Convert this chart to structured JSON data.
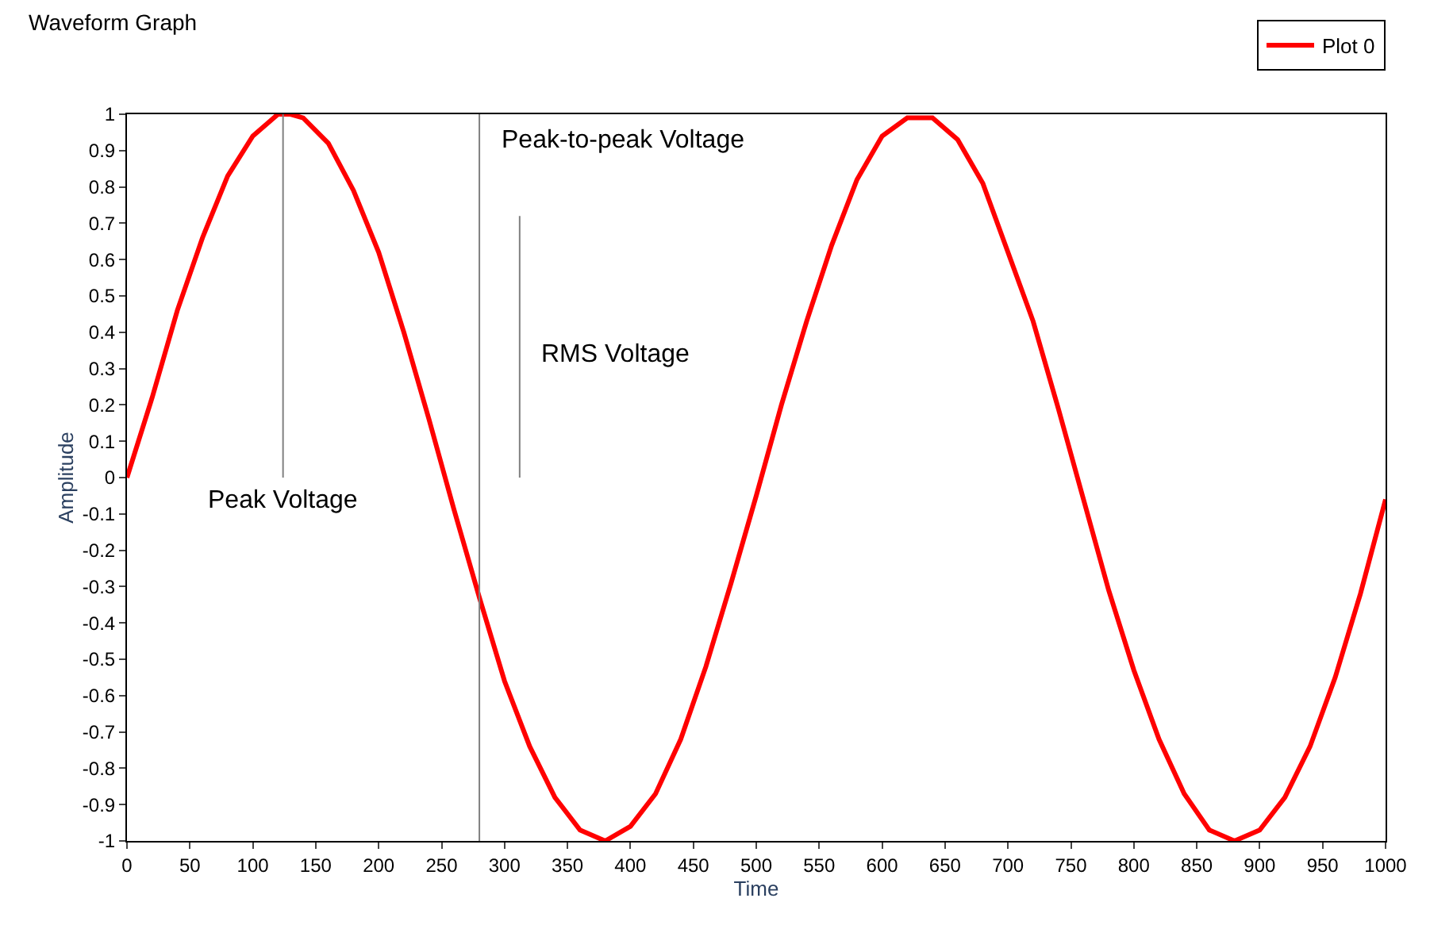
{
  "chart_data": {
    "type": "line",
    "title": "Waveform Graph",
    "xlabel": "Time",
    "ylabel": "Amplitude",
    "x": [
      0,
      20,
      40,
      60,
      80,
      100,
      120,
      130,
      140,
      160,
      180,
      200,
      220,
      240,
      260,
      280,
      300,
      320,
      340,
      360,
      380,
      400,
      420,
      440,
      460,
      480,
      500,
      520,
      540,
      560,
      580,
      600,
      620,
      640,
      660,
      680,
      700,
      720,
      740,
      760,
      780,
      800,
      820,
      840,
      860,
      880,
      900,
      920,
      940,
      960,
      980,
      1000
    ],
    "series": [
      {
        "name": "Plot 0",
        "color": "#ff0000",
        "values": [
          0,
          0.22,
          0.46,
          0.66,
          0.83,
          0.94,
          1.0,
          1.0,
          0.99,
          0.92,
          0.79,
          0.62,
          0.4,
          0.16,
          -0.09,
          -0.33,
          -0.56,
          -0.74,
          -0.88,
          -0.97,
          -1.0,
          -0.96,
          -0.87,
          -0.72,
          -0.52,
          -0.29,
          -0.05,
          0.2,
          0.43,
          0.64,
          0.82,
          0.94,
          0.99,
          0.99,
          0.93,
          0.81,
          0.62,
          0.43,
          0.19,
          -0.06,
          -0.31,
          -0.53,
          -0.72,
          -0.87,
          -0.97,
          -1.0,
          -0.97,
          -0.88,
          -0.74,
          -0.55,
          -0.32,
          -0.06
        ]
      },
      {
        "color": "#808080",
        "x": [
          124,
          124
        ],
        "values": [
          0,
          1
        ]
      },
      {
        "color": "#808080",
        "x": [
          280,
          280
        ],
        "values": [
          -1,
          1
        ]
      },
      {
        "color": "#808080",
        "x": [
          312,
          312
        ],
        "values": [
          0,
          0.72
        ]
      }
    ],
    "annotations": [
      {
        "text": "Peak Voltage",
        "x": 124,
        "y": 0
      },
      {
        "text": "Peak-to-peak Voltage",
        "x": 280,
        "y": 0.93
      },
      {
        "text": "RMS Voltage",
        "x": 312,
        "y": 0.34
      }
    ],
    "xlim": [
      0,
      1000
    ],
    "xticks": [
      0,
      50,
      100,
      150,
      200,
      250,
      300,
      350,
      400,
      450,
      500,
      550,
      600,
      650,
      700,
      750,
      800,
      850,
      900,
      950,
      1000
    ],
    "ylim": [
      -1,
      1
    ],
    "yticks": [
      -1,
      -0.9,
      -0.8,
      -0.7,
      -0.6,
      -0.5,
      -0.4,
      -0.3,
      -0.2,
      -0.1,
      0,
      0.1,
      0.2,
      0.3,
      0.4,
      0.5,
      0.6,
      0.7,
      0.8,
      0.9,
      1
    ],
    "legend": "top right",
    "marker": "none",
    "line_style": "solid"
  }
}
